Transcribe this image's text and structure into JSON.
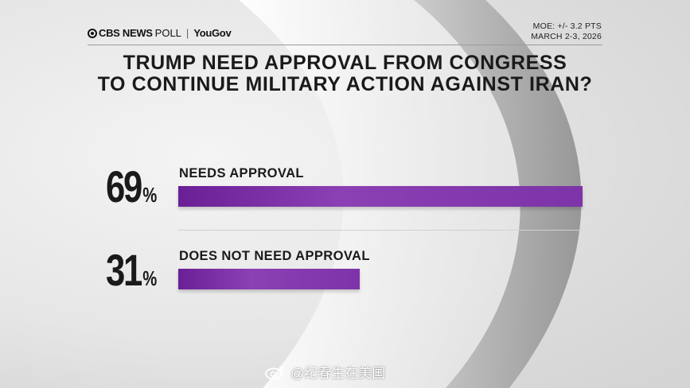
{
  "header": {
    "brand": "CBS NEWS",
    "poll": "POLL",
    "separator": "|",
    "partner": "YouGov",
    "moe": "MOE: +/- 3.2 PTS",
    "dates": "MARCH 2-3, 2026"
  },
  "chart_data": {
    "type": "bar",
    "title": "TRUMP NEED APPROVAL FROM CONGRESS TO CONTINUE MILITARY ACTION AGAINST IRAN?",
    "title_lines": [
      "TRUMP NEED APPROVAL FROM CONGRESS",
      "TO CONTINUE MILITARY ACTION AGAINST IRAN?"
    ],
    "categories": [
      "NEEDS APPROVAL",
      "DOES NOT NEED APPROVAL"
    ],
    "values": [
      69,
      31
    ],
    "value_labels": [
      "69",
      "31"
    ],
    "unit": "%",
    "xlim": [
      0,
      69
    ],
    "orientation": "horizontal",
    "bar_color": "#8b40b4"
  },
  "watermark": "@纪春生在美国"
}
